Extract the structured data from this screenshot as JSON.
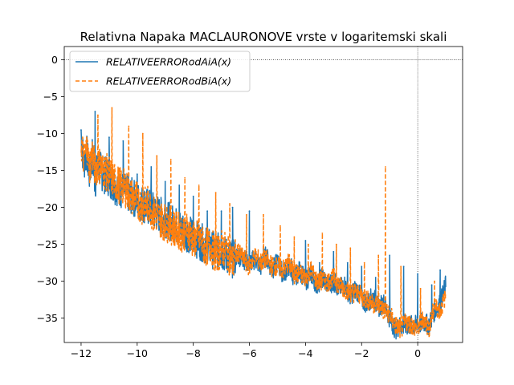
{
  "chart_data": {
    "type": "line",
    "title": "Relativna Napaka MACLAURONOVE vrste v logaritemski skali",
    "xlabel": "",
    "ylabel": "",
    "xlim": [
      -12.6,
      1.6
    ],
    "ylim": [
      -38.3,
      1.8
    ],
    "xticks": [
      -12,
      -10,
      -8,
      -6,
      -4,
      -2,
      0
    ],
    "yticks": [
      0,
      -5,
      -10,
      -15,
      -20,
      -25,
      -30,
      -35
    ],
    "xtick_labels": [
      "−12",
      "−10",
      "−8",
      "−6",
      "−4",
      "−2",
      "0"
    ],
    "ytick_labels": [
      "0",
      "−5",
      "−10",
      "−15",
      "−20",
      "−25",
      "−30",
      "−35"
    ],
    "grid": false,
    "reference_lines": {
      "x": 0,
      "y": 0,
      "style": "dotted"
    },
    "legend_position": "upper-left",
    "series": [
      {
        "name": "RELATIVEERRORodAiA(x)",
        "color": "#1f77b4",
        "style": "solid",
        "x": [
          -12.0,
          -11.9,
          -11.8,
          -11.7,
          -11.6,
          -11.5,
          -11.4,
          -11.2,
          -11.0,
          -10.8,
          -10.6,
          -10.4,
          -10.2,
          -10.0,
          -9.8,
          -9.6,
          -9.4,
          -9.2,
          -9.0,
          -8.8,
          -8.6,
          -8.4,
          -8.2,
          -8.0,
          -7.8,
          -7.6,
          -7.4,
          -7.2,
          -7.0,
          -6.8,
          -6.6,
          -6.4,
          -6.2,
          -6.0,
          -5.8,
          -5.6,
          -5.4,
          -5.2,
          -5.0,
          -4.8,
          -4.6,
          -4.4,
          -4.2,
          -4.0,
          -3.8,
          -3.6,
          -3.4,
          -3.2,
          -3.0,
          -2.8,
          -2.6,
          -2.4,
          -2.2,
          -2.0,
          -1.8,
          -1.6,
          -1.4,
          -1.2,
          -1.0,
          -0.8,
          -0.6,
          -0.4,
          -0.2,
          0.0,
          0.2,
          0.4,
          0.6,
          0.8,
          1.0
        ],
        "y": [
          -10.5,
          -14.0,
          -12.5,
          -15.5,
          -13.0,
          -16.5,
          -14.5,
          -15.5,
          -16.0,
          -17.0,
          -17.5,
          -18.0,
          -18.5,
          -19.0,
          -19.5,
          -20.0,
          -20.5,
          -21.0,
          -21.5,
          -22.0,
          -22.5,
          -23.0,
          -23.5,
          -24.0,
          -24.5,
          -25.0,
          -25.5,
          -26.0,
          -26.0,
          -26.5,
          -27.0,
          -26.5,
          -27.0,
          -27.5,
          -27.0,
          -28.0,
          -26.5,
          -28.5,
          -27.5,
          -29.0,
          -28.0,
          -29.5,
          -28.5,
          -30.0,
          -29.0,
          -30.5,
          -29.5,
          -30.5,
          -30.0,
          -31.0,
          -30.5,
          -32.0,
          -31.0,
          -32.5,
          -33.0,
          -32.0,
          -33.5,
          -33.0,
          -35.0,
          -36.5,
          -36.0,
          -36.0,
          -36.0,
          -36.0,
          -35.5,
          -36.0,
          -34.0,
          -33.0,
          -30.5
        ]
      },
      {
        "name": "RELATIVEERRORodBiA(x)",
        "color": "#ff7f0e",
        "style": "dashed",
        "x": [
          -12.0,
          -11.9,
          -11.8,
          -11.7,
          -11.6,
          -11.5,
          -11.4,
          -11.2,
          -11.0,
          -10.8,
          -10.6,
          -10.4,
          -10.2,
          -10.0,
          -9.8,
          -9.6,
          -9.4,
          -9.2,
          -9.0,
          -8.8,
          -8.6,
          -8.4,
          -8.2,
          -8.0,
          -7.8,
          -7.6,
          -7.4,
          -7.2,
          -7.0,
          -6.8,
          -6.6,
          -6.4,
          -6.2,
          -6.0,
          -5.8,
          -5.6,
          -5.4,
          -5.2,
          -5.0,
          -4.8,
          -4.6,
          -4.4,
          -4.2,
          -4.0,
          -3.8,
          -3.6,
          -3.4,
          -3.2,
          -3.0,
          -2.8,
          -2.6,
          -2.4,
          -2.2,
          -2.0,
          -1.8,
          -1.6,
          -1.4,
          -1.2,
          -1.0,
          -0.8,
          -0.6,
          -0.4,
          -0.2,
          0.0,
          0.2,
          0.4,
          0.6,
          0.8,
          1.0
        ],
        "y": [
          -11.0,
          -13.5,
          -12.0,
          -14.5,
          -12.5,
          -15.0,
          -14.0,
          -15.0,
          -15.5,
          -16.5,
          -17.0,
          -17.5,
          -18.5,
          -19.0,
          -20.0,
          -19.5,
          -21.0,
          -21.5,
          -22.0,
          -22.5,
          -23.0,
          -23.5,
          -23.0,
          -24.5,
          -24.0,
          -25.5,
          -25.0,
          -26.5,
          -25.5,
          -26.0,
          -27.5,
          -26.0,
          -27.0,
          -28.0,
          -26.5,
          -27.5,
          -27.0,
          -28.0,
          -28.0,
          -28.5,
          -27.5,
          -29.0,
          -29.0,
          -29.5,
          -28.5,
          -30.0,
          -30.0,
          -30.0,
          -29.5,
          -30.5,
          -31.0,
          -31.5,
          -31.5,
          -32.0,
          -32.5,
          -33.0,
          -33.0,
          -34.0,
          -34.5,
          -36.0,
          -36.5,
          -35.5,
          -36.0,
          -36.5,
          -35.0,
          -36.5,
          -33.5,
          -34.0,
          -32.0
        ]
      }
    ],
    "peaks": [
      {
        "series": 0,
        "x": [
          -12.0,
          -11.5,
          -11.0,
          -10.5,
          -10.0,
          -9.5,
          -9.0,
          -8.5,
          -8.0,
          -7.5,
          -7.0,
          -6.6,
          -6.0,
          -5.5,
          -5.0,
          -4.5,
          -4.0,
          -3.5,
          -3.0,
          -2.5,
          -2.0,
          -1.5,
          -1.0,
          -0.5,
          0.0,
          0.5,
          0.8
        ],
        "y": [
          -9.5,
          -7.0,
          -10.5,
          -11.0,
          -15.5,
          -14.5,
          -16.5,
          -17.0,
          -18.5,
          -20.5,
          -20.5,
          -20.0,
          -20.5,
          -25.5,
          -26.5,
          -27.0,
          -24.5,
          -27.5,
          -26.0,
          -27.5,
          -28.0,
          -29.5,
          -26.5,
          -28.0,
          -29.0,
          -30.5,
          -28.5
        ]
      },
      {
        "series": 1,
        "x": [
          -11.8,
          -11.4,
          -10.9,
          -10.3,
          -9.8,
          -9.3,
          -8.8,
          -8.3,
          -7.8,
          -7.2,
          -6.7,
          -6.1,
          -5.5,
          -4.9,
          -4.4,
          -3.9,
          -3.4,
          -2.9,
          -2.4,
          -1.9,
          -1.4,
          -1.15,
          -0.6,
          0.1,
          0.6,
          0.9
        ],
        "y": [
          -10.5,
          -7.5,
          -6.5,
          -9.0,
          -10.0,
          -13.0,
          -13.5,
          -16.0,
          -17.0,
          -18.0,
          -19.5,
          -21.0,
          -21.0,
          -22.5,
          -24.0,
          -25.0,
          -23.5,
          -25.0,
          -25.5,
          -27.5,
          -26.5,
          -14.5,
          -28.0,
          -31.0,
          -30.0,
          -32.5
        ]
      }
    ]
  },
  "legend": {
    "entries": [
      {
        "label": "RELATIVEERRORodAiA(x)",
        "color": "#1f77b4",
        "style": "solid"
      },
      {
        "label": "RELATIVEERRORodBiA(x)",
        "color": "#ff7f0e",
        "style": "dashed"
      }
    ]
  }
}
